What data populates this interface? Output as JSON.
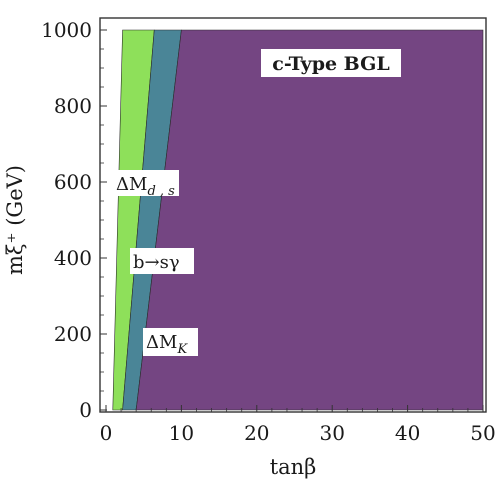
{
  "chart_data": {
    "type": "area",
    "title": "c-Type BGL",
    "xlabel": "tanβ",
    "ylabel": "mξ⁺ (GeV)",
    "xlim": [
      0,
      50
    ],
    "ylim": [
      0,
      1000
    ],
    "x_ticks": [
      "0",
      "10",
      "20",
      "30",
      "40",
      "50"
    ],
    "y_ticks": [
      "0",
      "200",
      "400",
      "600",
      "800",
      "1000"
    ],
    "regions": [
      {
        "label": "ΔM_{d,s}",
        "color": "#8ee05a",
        "polygon": [
          [
            0.9,
            0
          ],
          [
            2.2,
            0
          ],
          [
            6.4,
            1000
          ],
          [
            2.2,
            1000
          ]
        ]
      },
      {
        "label": "b→sγ",
        "color": "#4a8597",
        "polygon": [
          [
            2.2,
            0
          ],
          [
            4.0,
            0
          ],
          [
            10.0,
            1000
          ],
          [
            6.4,
            1000
          ]
        ]
      },
      {
        "label": "ΔM_K",
        "color": "#744582",
        "polygon": [
          [
            4.0,
            0
          ],
          [
            50,
            0
          ],
          [
            50,
            1000
          ],
          [
            10.0,
            1000
          ]
        ]
      }
    ],
    "annotations": [
      {
        "main": "ΔM",
        "sub": "d , s"
      },
      {
        "main": "b→sγ",
        "sub": ""
      },
      {
        "main": "ΔM",
        "sub": "K"
      }
    ],
    "grid": false
  }
}
